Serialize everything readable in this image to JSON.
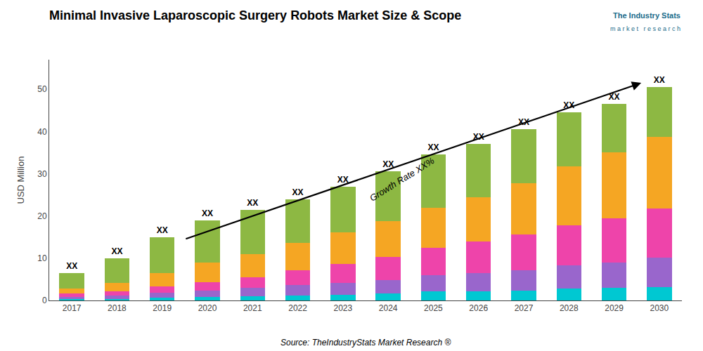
{
  "chart_data": {
    "type": "bar",
    "stacked": true,
    "title": "Minimal Invasive Laparoscopic Surgery Robots Market Size & Scope",
    "y_label": "USD Million",
    "source": "Source: TheIndustryStats Market Research ®",
    "annotations": [
      "Growth Rate XX%",
      "The Industry Stats",
      "m a r k e t   r e s e a r c h"
    ],
    "categories": [
      "2017",
      "2018",
      "2019",
      "2020",
      "2021",
      "2022",
      "2023",
      "2024",
      "2025",
      "2026",
      "2027",
      "2028",
      "2029",
      "2030"
    ],
    "series": [
      {
        "color": "#00c8d2",
        "values": [
          0.3,
          0.4,
          0.6,
          0.8,
          1.0,
          1.2,
          1.4,
          1.6,
          2.2,
          2.2,
          2.4,
          2.8,
          3.0,
          3.2
        ]
      },
      {
        "color": "#9966cc",
        "values": [
          0.6,
          0.8,
          1.2,
          1.6,
          2.0,
          2.4,
          2.8,
          3.2,
          3.8,
          4.3,
          4.8,
          5.5,
          6.0,
          7.0
        ]
      },
      {
        "color": "#ee44aa",
        "values": [
          0.8,
          1.0,
          1.5,
          2.0,
          2.5,
          3.5,
          4.5,
          5.5,
          6.5,
          7.5,
          8.5,
          9.5,
          10.5,
          11.5
        ]
      },
      {
        "color": "#f5a623",
        "values": [
          1.2,
          2.0,
          3.2,
          4.5,
          5.5,
          6.5,
          7.5,
          8.5,
          9.5,
          10.5,
          12.0,
          14.0,
          15.5,
          17.0
        ]
      },
      {
        "color": "#8db843",
        "values": [
          3.6,
          5.8,
          8.5,
          10.1,
          10.5,
          10.4,
          10.8,
          11.7,
          12.5,
          12.5,
          12.8,
          12.7,
          11.5,
          11.8
        ]
      }
    ],
    "total_labels": [
      "XX",
      "XX",
      "XX",
      "XX",
      "XX",
      "XX",
      "XX",
      "XX",
      "XX",
      "XX",
      "XX",
      "XX",
      "XX",
      "XX"
    ],
    "ylim": [
      0,
      57
    ],
    "yticks": [
      0,
      10,
      20,
      30,
      40,
      50
    ],
    "grid": false
  }
}
